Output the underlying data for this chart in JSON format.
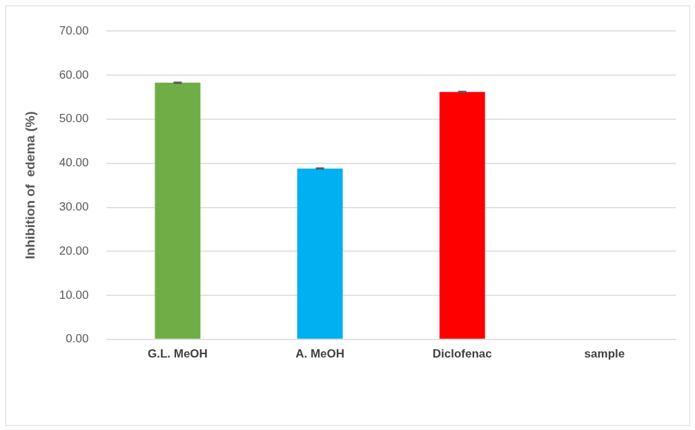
{
  "chart_data": {
    "type": "bar",
    "ylabel": "Inhibition of  edema (%)",
    "categories": [
      "G.L. MeOH",
      "A. MeOH",
      "Diclofenac",
      "sample"
    ],
    "values": [
      58.3,
      38.8,
      56.2,
      null
    ],
    "colors": [
      "#70ad47",
      "#00b0f0",
      "#ff0000",
      "#808080"
    ],
    "errors": [
      0.1,
      0.1,
      0.1,
      null
    ],
    "ylim": [
      0,
      70
    ],
    "yticks": [
      {
        "value": 0,
        "label": "0.00"
      },
      {
        "value": 10,
        "label": "10.00"
      },
      {
        "value": 20,
        "label": "20.00"
      },
      {
        "value": 30,
        "label": "30.00"
      },
      {
        "value": 40,
        "label": "40.00"
      },
      {
        "value": 50,
        "label": "50.00"
      },
      {
        "value": 60,
        "label": "60.00"
      },
      {
        "value": 70,
        "label": "70.00"
      }
    ],
    "grid": "y",
    "legend": false
  }
}
